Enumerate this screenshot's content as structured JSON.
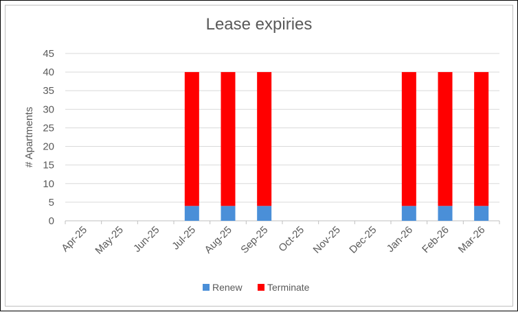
{
  "chart_data": {
    "type": "bar",
    "stacked": true,
    "title": "Lease expiries",
    "xlabel": "",
    "ylabel": "# Apartments",
    "ylim": [
      0,
      45
    ],
    "yticks": [
      "0",
      "5",
      "10",
      "15",
      "20",
      "25",
      "30",
      "35",
      "40",
      "45"
    ],
    "grid": true,
    "legend_position": "bottom",
    "categories": [
      "Apr-25",
      "May-25",
      "Jun-25",
      "Jul-25",
      "Aug-25",
      "Sep-25",
      "Oct-25",
      "Nov-25",
      "Dec-25",
      "Jan-26",
      "Feb-26",
      "Mar-26"
    ],
    "series": [
      {
        "name": "Renew",
        "color": "#4a8fd8",
        "values": [
          0,
          0,
          0,
          4,
          4,
          4,
          0,
          0,
          0,
          4,
          4,
          4
        ]
      },
      {
        "name": "Terminate",
        "color": "#ff0000",
        "values": [
          0,
          0,
          0,
          36,
          36,
          36,
          0,
          0,
          0,
          36,
          36,
          36
        ]
      }
    ]
  }
}
